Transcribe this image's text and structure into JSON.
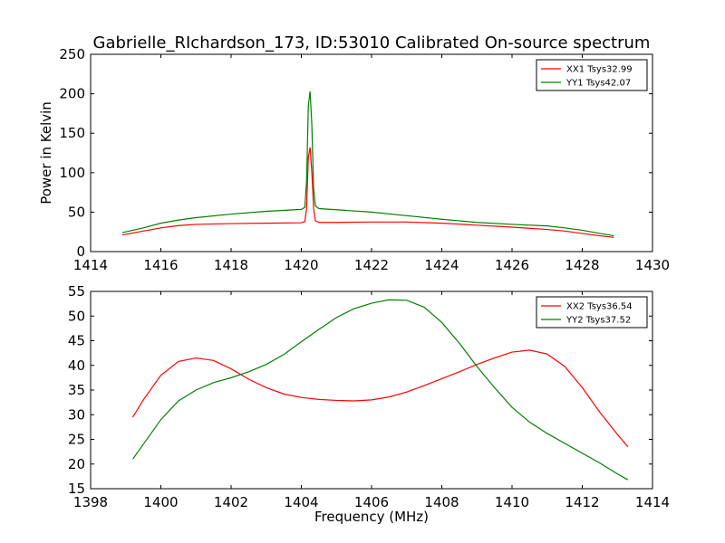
{
  "chart_data": [
    {
      "type": "line",
      "title": "Gabrielle_RIchardson_173, ID:53010 Calibrated On-source spectrum",
      "xlabel": "",
      "ylabel": "Power in Kelvin",
      "xlim": [
        1414,
        1430
      ],
      "ylim": [
        0,
        250
      ],
      "xticks": [
        1414,
        1416,
        1418,
        1420,
        1422,
        1424,
        1426,
        1428,
        1430
      ],
      "yticks": [
        0,
        50,
        100,
        150,
        200,
        250
      ],
      "legend": "top-right",
      "series": [
        {
          "name": "XX1 Tsys32.99",
          "color": "#ff0000",
          "x": [
            1414.9,
            1415.5,
            1416,
            1416.5,
            1417,
            1418,
            1419,
            1420,
            1420.1,
            1420.15,
            1420.2,
            1420.25,
            1420.3,
            1420.35,
            1420.4,
            1420.5,
            1421,
            1422,
            1423,
            1424,
            1425,
            1426,
            1427,
            1427.5,
            1428,
            1428.5,
            1428.9
          ],
          "y": [
            21,
            26,
            30,
            33,
            34.5,
            35.5,
            36,
            36.5,
            38,
            55,
            120,
            132,
            100,
            55,
            39,
            37,
            37,
            37.5,
            37.5,
            36,
            33.5,
            31,
            28,
            26,
            23,
            20,
            18
          ]
        },
        {
          "name": "YY1 Tsys42.07",
          "color": "#008000",
          "x": [
            1414.9,
            1415.5,
            1416,
            1416.5,
            1417,
            1418,
            1419,
            1420,
            1420.1,
            1420.15,
            1420.2,
            1420.25,
            1420.3,
            1420.35,
            1420.4,
            1420.5,
            1421,
            1422,
            1423,
            1424,
            1425,
            1426,
            1427,
            1427.5,
            1428,
            1428.5,
            1428.9
          ],
          "y": [
            24,
            30,
            36,
            40,
            43,
            47.5,
            51,
            53.5,
            56,
            90,
            185,
            203,
            160,
            80,
            58,
            54.5,
            53,
            50,
            45.5,
            41,
            37,
            34.5,
            32.5,
            30,
            27,
            23,
            20
          ]
        }
      ]
    },
    {
      "type": "line",
      "title": "",
      "xlabel": "Frequency (MHz)",
      "ylabel": "",
      "xlim": [
        1398,
        1414
      ],
      "ylim": [
        15,
        55
      ],
      "xticks": [
        1398,
        1400,
        1402,
        1404,
        1406,
        1408,
        1410,
        1412,
        1414
      ],
      "yticks": [
        15,
        20,
        25,
        30,
        35,
        40,
        45,
        50,
        55
      ],
      "legend": "top-right",
      "series": [
        {
          "name": "XX2 Tsys36.54",
          "color": "#ff0000",
          "x": [
            1399.2,
            1399.5,
            1400,
            1400.5,
            1401,
            1401.5,
            1402,
            1402.5,
            1403,
            1403.5,
            1404,
            1404.5,
            1405,
            1405.5,
            1406,
            1406.5,
            1407,
            1407.5,
            1408,
            1408.5,
            1409,
            1409.5,
            1410,
            1410.5,
            1411,
            1411.5,
            1412,
            1412.5,
            1413,
            1413.3
          ],
          "y": [
            29.5,
            33,
            38,
            40.8,
            41.5,
            41,
            39.3,
            37.2,
            35.5,
            34.2,
            33.5,
            33.1,
            32.9,
            32.8,
            33,
            33.6,
            34.6,
            35.9,
            37.3,
            38.7,
            40.2,
            41.5,
            42.7,
            43.1,
            42.3,
            39.8,
            35.5,
            30.5,
            26,
            23.5
          ]
        },
        {
          "name": "YY2 Tsys37.52",
          "color": "#008000",
          "x": [
            1399.2,
            1399.5,
            1400,
            1400.5,
            1401,
            1401.5,
            1402,
            1402.5,
            1403,
            1403.5,
            1404,
            1404.5,
            1405,
            1405.5,
            1406,
            1406.5,
            1407,
            1407.5,
            1408,
            1408.5,
            1409,
            1409.5,
            1410,
            1410.5,
            1411,
            1411.5,
            1412,
            1412.5,
            1413,
            1413.3
          ],
          "y": [
            21,
            24,
            29,
            32.8,
            35,
            36.5,
            37.5,
            38.7,
            40.2,
            42.2,
            44.8,
            47.3,
            49.7,
            51.5,
            52.6,
            53.3,
            53.2,
            51.8,
            48.7,
            44.5,
            39.8,
            35.5,
            31.5,
            28.5,
            26.2,
            24.2,
            22.2,
            20.2,
            18,
            16.8
          ]
        }
      ]
    }
  ]
}
